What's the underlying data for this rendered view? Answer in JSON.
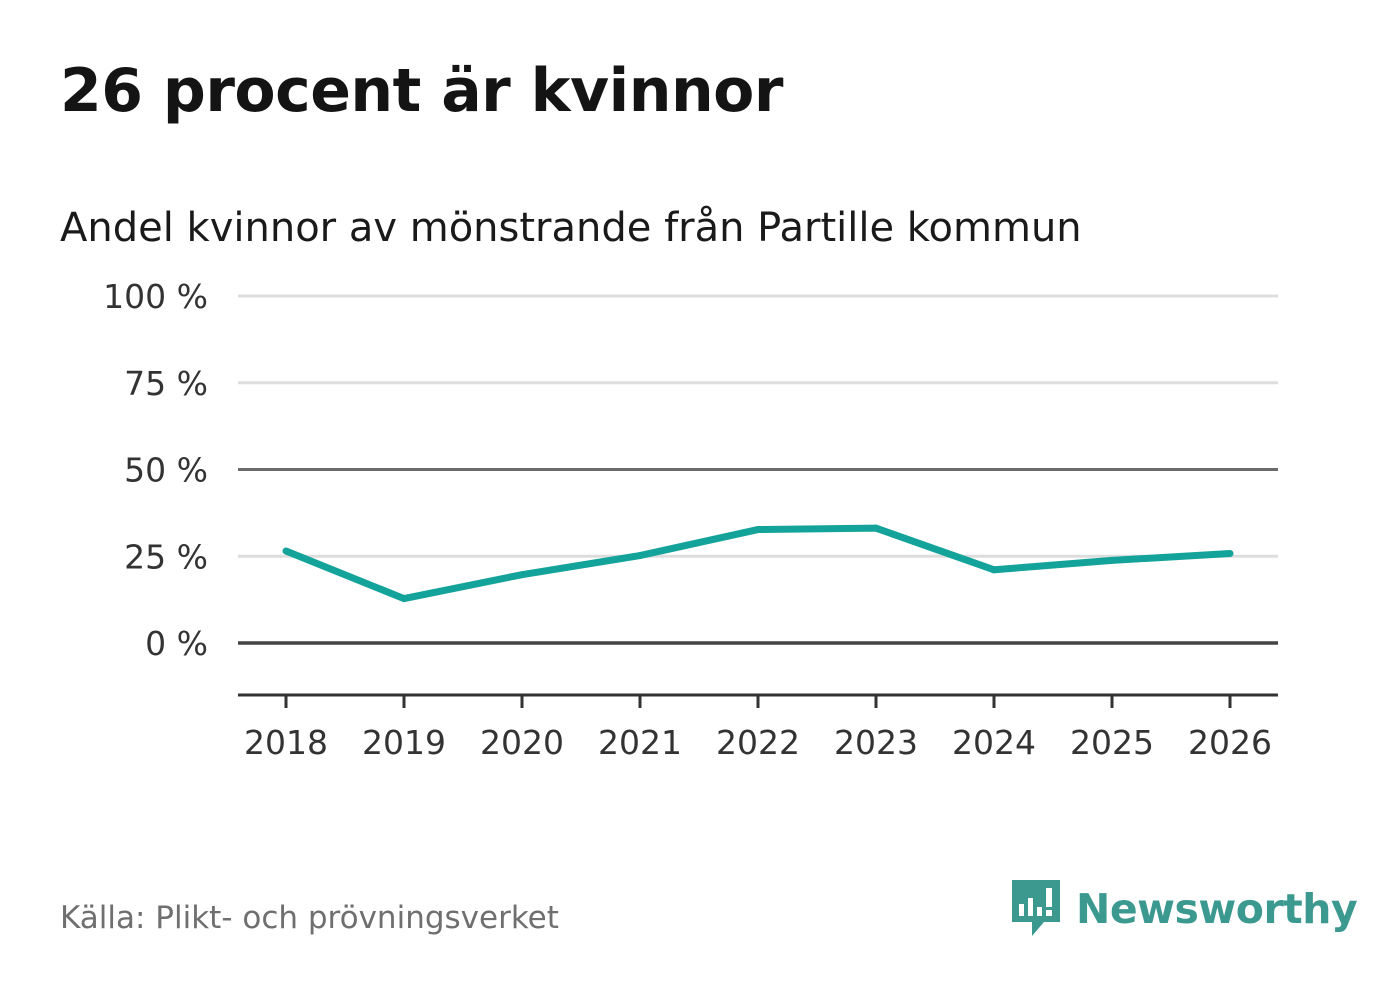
{
  "title": "26 procent är kvinnor",
  "subtitle": "Andel kvinnor av mönstrande från Partille kommun",
  "source": "Källa: Plikt- och prövningsverket",
  "brand": {
    "name": "Newsworthy",
    "icon": "newsworthy-bar-chart-icon",
    "color": "#3c9990"
  },
  "colors": {
    "line": "#13a39a",
    "grid": "#dddddd",
    "reference_line": "#6b6b6b",
    "zero_line": "#444444",
    "axis": "#333333",
    "tick_text": "#333333"
  },
  "chart_data": {
    "type": "line",
    "title": "26 procent är kvinnor",
    "subtitle": "Andel kvinnor av mönstrande från Partille kommun",
    "xlabel": "",
    "ylabel": "",
    "categories": [
      "2018",
      "2019",
      "2020",
      "2021",
      "2022",
      "2023",
      "2024",
      "2025",
      "2026"
    ],
    "series": [
      {
        "name": "Andel kvinnor",
        "values": [
          26.5,
          12.8,
          19.7,
          25.2,
          32.7,
          33.1,
          21.1,
          23.8,
          25.8
        ]
      }
    ],
    "ylim": [
      -15,
      100
    ],
    "yticks": [
      0,
      25,
      50,
      75,
      100
    ],
    "ytick_labels": [
      "0 %",
      "25 %",
      "50 %",
      "75 %",
      "100 %"
    ],
    "reference_line": 50,
    "grid": true,
    "legend": "none"
  }
}
